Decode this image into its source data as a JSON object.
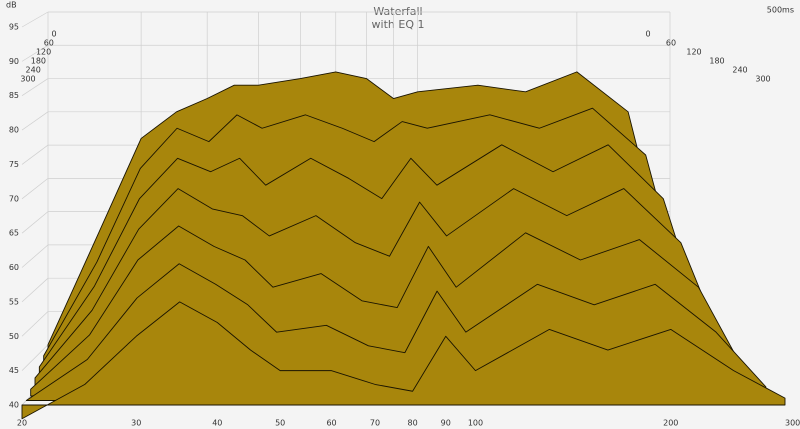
{
  "chart_data": {
    "type": "waterfall",
    "title": "Waterfall",
    "subtitle": "with EQ 1",
    "y_label": "dB",
    "z_label": "500ms",
    "color": "#a8860c",
    "x": [
      20,
      25,
      30,
      35,
      40,
      45,
      50,
      60,
      70,
      80,
      90,
      100,
      130,
      160,
      200,
      250,
      300
    ],
    "xlim": [
      20,
      300
    ],
    "xticks": [
      20,
      30,
      40,
      50,
      60,
      70,
      80,
      90,
      100,
      200,
      {
        "value": 300,
        "label": "300 Hz"
      }
    ],
    "ylim": [
      40,
      95
    ],
    "yticks": [
      40,
      45,
      50,
      55,
      60,
      65,
      70,
      75,
      80,
      85,
      90,
      95
    ],
    "zlim": [
      0,
      300
    ],
    "zticks": [
      0,
      60,
      120,
      180,
      240,
      300
    ],
    "grid": true,
    "slices": [
      {
        "t": 0,
        "values": [
          45,
          62,
          76,
          80,
          82,
          84,
          84,
          85,
          86,
          85,
          82,
          83,
          84,
          83,
          86,
          80,
          55
        ]
      },
      {
        "t": 50,
        "values": [
          44,
          58,
          72,
          78,
          76,
          80,
          78,
          80,
          78,
          76,
          79,
          78,
          80,
          78,
          81,
          74,
          50
        ]
      },
      {
        "t": 100,
        "values": [
          43,
          55,
          68,
          74,
          72,
          74,
          70,
          74,
          71,
          68,
          74,
          70,
          76,
          72,
          76,
          68,
          47
        ]
      },
      {
        "t": 150,
        "values": [
          42,
          52,
          64,
          70,
          67,
          66,
          63,
          66,
          62,
          60,
          68,
          63,
          70,
          66,
          70,
          62,
          45
        ]
      },
      {
        "t": 200,
        "values": [
          41,
          49,
          60,
          65,
          62,
          60,
          56,
          58,
          54,
          53,
          62,
          56,
          64,
          60,
          63,
          56,
          43
        ]
      },
      {
        "t": 250,
        "values": [
          40,
          46,
          55,
          60,
          57,
          54,
          50,
          51,
          48,
          47,
          56,
          50,
          57,
          54,
          57,
          50,
          42
        ]
      },
      {
        "t": 300,
        "values": [
          38,
          43,
          50,
          55,
          52,
          48,
          45,
          45,
          43,
          42,
          50,
          45,
          51,
          48,
          51,
          45,
          41
        ]
      }
    ]
  }
}
